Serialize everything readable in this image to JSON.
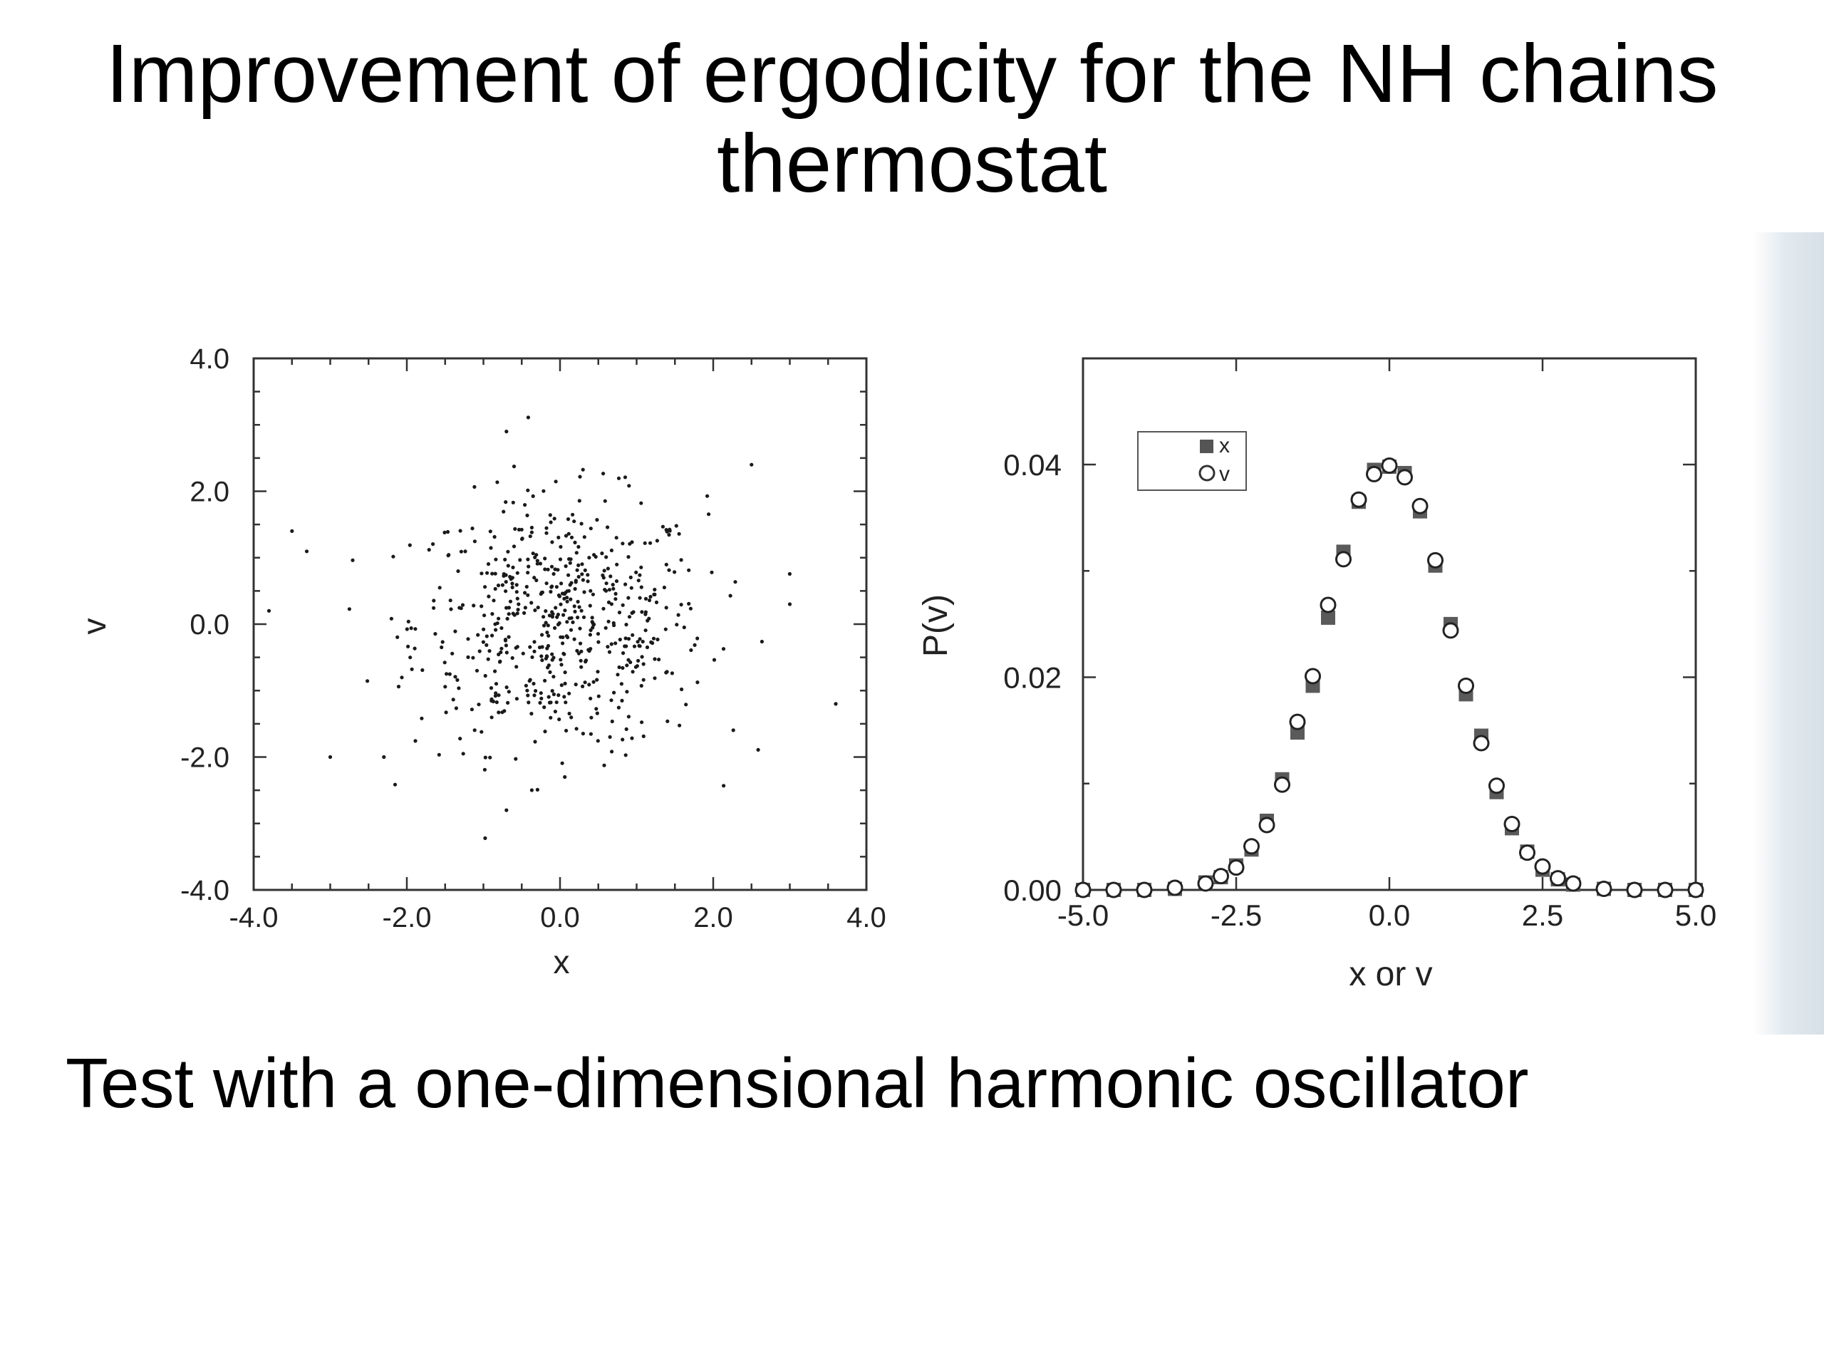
{
  "slide": {
    "title_line1": "Improvement of ergodicity for the NH chains",
    "title_line2": "thermostat",
    "subtitle": "Test with a one-dimensional harmonic oscillator"
  },
  "chart_data": [
    {
      "type": "scatter",
      "title": "",
      "xlabel": "x",
      "ylabel": "v",
      "xlim": [
        -4.0,
        4.0
      ],
      "ylim": [
        -4.0,
        4.0
      ],
      "xticks": [
        "-4.0",
        "-2.0",
        "0.0",
        "2.0",
        "4.0"
      ],
      "yticks": [
        "-4.0",
        "-2.0",
        "0.0",
        "2.0",
        "4.0"
      ],
      "grid": false,
      "marker": "small black dots",
      "point_count_approx": 600,
      "distribution": "roughly isotropic Gaussian cloud centered at (0, 0), standard deviation about 1, extending to about |x| < 3.6 and |v| < 3",
      "outlier_points": [
        [
          -3.5,
          1.4
        ],
        [
          -3.0,
          -2.0
        ],
        [
          3.6,
          -1.2
        ],
        [
          -0.7,
          2.9
        ],
        [
          3.0,
          0.3
        ],
        [
          -3.8,
          0.2
        ],
        [
          2.5,
          2.4
        ],
        [
          -2.3,
          -2.0
        ],
        [
          -0.7,
          -2.8
        ]
      ]
    },
    {
      "type": "scatter",
      "title": "",
      "xlabel": "x or v",
      "ylabel": "P(v)",
      "xlim": [
        -5.0,
        5.0
      ],
      "ylim": [
        0.0,
        0.05
      ],
      "xticks": [
        "-5.0",
        "-2.5",
        "0.0",
        "2.5",
        "5.0"
      ],
      "yticks": [
        "0.00",
        "0.02",
        "0.04"
      ],
      "grid": false,
      "legend": {
        "position": "top-left",
        "entries": [
          "x",
          "v"
        ]
      },
      "x": [
        -5.0,
        -4.5,
        -4.0,
        -3.5,
        -3.0,
        -2.75,
        -2.5,
        -2.25,
        -2.0,
        -1.75,
        -1.5,
        -1.25,
        -1.0,
        -0.75,
        -0.5,
        -0.25,
        0.0,
        0.25,
        0.5,
        0.75,
        1.0,
        1.25,
        1.5,
        1.75,
        2.0,
        2.25,
        2.5,
        2.75,
        3.0,
        3.5,
        4.0,
        4.5,
        5.0
      ],
      "series": [
        {
          "name": "x",
          "marker": "filled square",
          "values": [
            0.0,
            0.0,
            0.0,
            0.0001,
            0.0007,
            0.0012,
            0.0023,
            0.0038,
            0.0065,
            0.0104,
            0.0148,
            0.0192,
            0.0256,
            0.0318,
            0.0365,
            0.0395,
            0.0398,
            0.0392,
            0.0356,
            0.0305,
            0.025,
            0.0184,
            0.0145,
            0.0092,
            0.0058,
            0.0036,
            0.0019,
            0.001,
            0.0005,
            0.0001,
            0.0,
            0.0,
            0.0
          ]
        },
        {
          "name": "v",
          "marker": "open circle",
          "values": [
            0.0,
            0.0,
            0.0,
            0.0002,
            0.0006,
            0.0013,
            0.0021,
            0.0041,
            0.0061,
            0.0099,
            0.0158,
            0.0201,
            0.0268,
            0.0311,
            0.0367,
            0.0391,
            0.0399,
            0.0388,
            0.0361,
            0.031,
            0.0244,
            0.0192,
            0.0138,
            0.0098,
            0.0062,
            0.0035,
            0.0022,
            0.0011,
            0.0006,
            0.0001,
            0.0,
            0.0,
            0.0
          ]
        }
      ]
    }
  ]
}
